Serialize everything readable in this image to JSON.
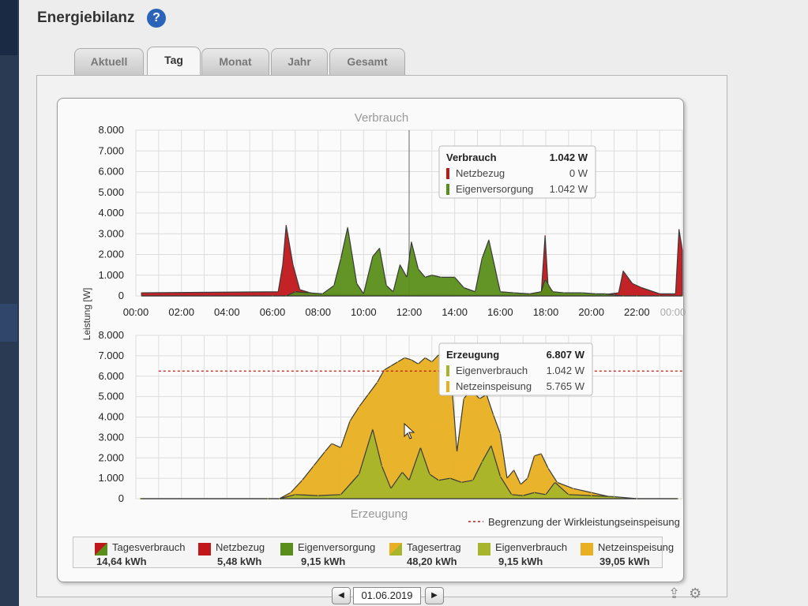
{
  "page": {
    "title": "Energiebilanz",
    "help_label": "?"
  },
  "tabs": [
    {
      "label": "Aktuell",
      "active": false
    },
    {
      "label": "Tag",
      "active": true
    },
    {
      "label": "Monat",
      "active": false
    },
    {
      "label": "Jahr",
      "active": false
    },
    {
      "label": "Gesamt",
      "active": false
    }
  ],
  "chart_data": [
    {
      "type": "area",
      "title": "Verbrauch",
      "ylabel": "Leistung [W]",
      "ylim": [
        0,
        8000
      ],
      "yticks": [
        "0",
        "1.000",
        "2.000",
        "3.000",
        "4.000",
        "5.000",
        "6.000",
        "7.000",
        "8.000"
      ],
      "xlim": [
        0,
        24
      ],
      "xticks": [
        "00:00",
        "02:00",
        "04:00",
        "06:00",
        "08:00",
        "10:00",
        "12:00",
        "14:00",
        "16:00",
        "18:00",
        "20:00",
        "22:00",
        "00:00"
      ],
      "grid": true,
      "crosshair_x": 12,
      "series": [
        {
          "name": "Netzbezug",
          "color": "#c0171b",
          "x": [
            0.25,
            6.25,
            6.45,
            6.6,
            6.9,
            7.2,
            7.8,
            8.8,
            10.5,
            11.8,
            12.2,
            13.2,
            14.0,
            15.0,
            16.5,
            17.8,
            17.97,
            18.1,
            18.4,
            19.5,
            20.5,
            21.2,
            21.4,
            21.8,
            22.2,
            23.0,
            23.7,
            23.85,
            24.0
          ],
          "y": [
            150,
            200,
            1500,
            3400,
            1500,
            300,
            100,
            80,
            60,
            60,
            60,
            80,
            60,
            60,
            60,
            100,
            2900,
            500,
            80,
            60,
            60,
            150,
            1200,
            600,
            400,
            100,
            100,
            3200,
            2200
          ]
        },
        {
          "name": "Eigenversorgung",
          "color": "#5a8e1a",
          "x": [
            0.25,
            6.0,
            6.6,
            7.0,
            7.6,
            8.2,
            8.7,
            9.0,
            9.3,
            9.7,
            10.0,
            10.4,
            10.7,
            11.0,
            11.3,
            11.6,
            11.9,
            12.1,
            12.4,
            12.7,
            13.0,
            13.4,
            14.0,
            14.4,
            14.9,
            15.2,
            15.5,
            16.0,
            16.6,
            17.3,
            17.8,
            17.97,
            18.3,
            18.8,
            19.6,
            20.2,
            20.6,
            21.0,
            21.4,
            22.0,
            23.0,
            24.0
          ],
          "y": [
            0,
            0,
            0,
            200,
            150,
            100,
            500,
            1800,
            3300,
            600,
            100,
            1900,
            2300,
            500,
            200,
            1500,
            900,
            2600,
            1300,
            900,
            1000,
            900,
            900,
            400,
            200,
            1800,
            2700,
            200,
            150,
            100,
            200,
            800,
            200,
            150,
            150,
            100,
            100,
            50,
            0,
            0,
            0,
            0
          ]
        }
      ],
      "tooltip": {
        "title": "Verbrauch",
        "title_value": "1.042 W",
        "rows": [
          {
            "label": "Netzbezug",
            "value": "0 W",
            "color": "#c0171b"
          },
          {
            "label": "Eigenversorgung",
            "value": "1.042 W",
            "color": "#5a8e1a"
          }
        ]
      }
    },
    {
      "type": "area",
      "title": "Erzeugung",
      "ylim": [
        0,
        8000
      ],
      "yticks": [
        "0",
        "1.000",
        "2.000",
        "3.000",
        "4.000",
        "5.000",
        "6.000",
        "7.000",
        "8.000"
      ],
      "xlim": [
        0,
        24
      ],
      "grid": true,
      "limit_line": {
        "value": 6250,
        "label": "Begrenzung der Wirkleistungseinspeisung",
        "color": "#c0171b"
      },
      "series": [
        {
          "name": "Netzeinspeisung",
          "color": "#e8b020",
          "x": [
            0.2,
            5.8,
            6.3,
            6.8,
            7.3,
            7.8,
            8.3,
            8.6,
            9.0,
            9.4,
            9.8,
            10.2,
            10.6,
            10.9,
            11.2,
            11.5,
            11.8,
            12.1,
            12.4,
            12.7,
            13.0,
            13.3,
            13.6,
            13.9,
            14.1,
            14.4,
            14.7,
            15.1,
            15.4,
            15.7,
            16.0,
            16.3,
            16.6,
            16.9,
            17.2,
            17.5,
            17.8,
            18.1,
            18.5,
            19.2,
            20.0,
            20.8,
            21.4,
            22.2,
            23.8
          ],
          "y": [
            0,
            0,
            0,
            300,
            900,
            1600,
            2300,
            2700,
            2500,
            3800,
            4500,
            5100,
            5700,
            6300,
            6500,
            6700,
            6900,
            6800,
            6600,
            6900,
            6700,
            7050,
            6500,
            5200,
            2300,
            4900,
            5300,
            4900,
            5100,
            4100,
            3200,
            1000,
            1400,
            700,
            1000,
            2100,
            2200,
            1500,
            800,
            500,
            300,
            100,
            0,
            0,
            0
          ]
        },
        {
          "name": "Eigenverbrauch",
          "color": "#a8b52a",
          "x": [
            0.2,
            5.8,
            6.3,
            7.0,
            8.0,
            9.0,
            9.8,
            10.4,
            10.8,
            11.2,
            11.7,
            12.0,
            12.5,
            12.9,
            13.3,
            13.8,
            14.3,
            14.8,
            15.2,
            15.6,
            16.0,
            16.5,
            17.0,
            17.5,
            18.0,
            18.4,
            19.0,
            20.0,
            21.0,
            22.0,
            23.8
          ],
          "y": [
            0,
            0,
            0,
            200,
            150,
            200,
            1200,
            3400,
            1600,
            500,
            1300,
            900,
            2500,
            1200,
            900,
            1000,
            800,
            900,
            1800,
            2600,
            1100,
            200,
            150,
            300,
            200,
            800,
            200,
            150,
            100,
            0,
            0
          ]
        }
      ],
      "tooltip": {
        "title": "Erzeugung",
        "title_value": "6.807 W",
        "rows": [
          {
            "label": "Eigenverbrauch",
            "value": "1.042 W",
            "color": "#a8b52a"
          },
          {
            "label": "Netzeinspeisung",
            "value": "5.765 W",
            "color": "#e8b020"
          }
        ]
      }
    }
  ],
  "legend": [
    {
      "name": "Tagesverbrauch",
      "value": "14,64 kWh",
      "colors": [
        "#c0171b",
        "#5a8e1a"
      ]
    },
    {
      "name": "Netzbezug",
      "value": "5,48 kWh",
      "colors": [
        "#c0171b"
      ]
    },
    {
      "name": "Eigenversorgung",
      "value": "9,15 kWh",
      "colors": [
        "#5a8e1a"
      ]
    },
    {
      "name": "Tagesertrag",
      "value": "48,20 kWh",
      "colors": [
        "#e8b020",
        "#a8b52a"
      ]
    },
    {
      "name": "Eigenverbrauch",
      "value": "9,15 kWh",
      "colors": [
        "#a8b52a"
      ]
    },
    {
      "name": "Netzeinspeisung",
      "value": "39,05 kWh",
      "colors": [
        "#e8b020"
      ]
    }
  ],
  "date_nav": {
    "date": "01.06.2019",
    "prev_label": "◀",
    "next_label": "▶"
  }
}
